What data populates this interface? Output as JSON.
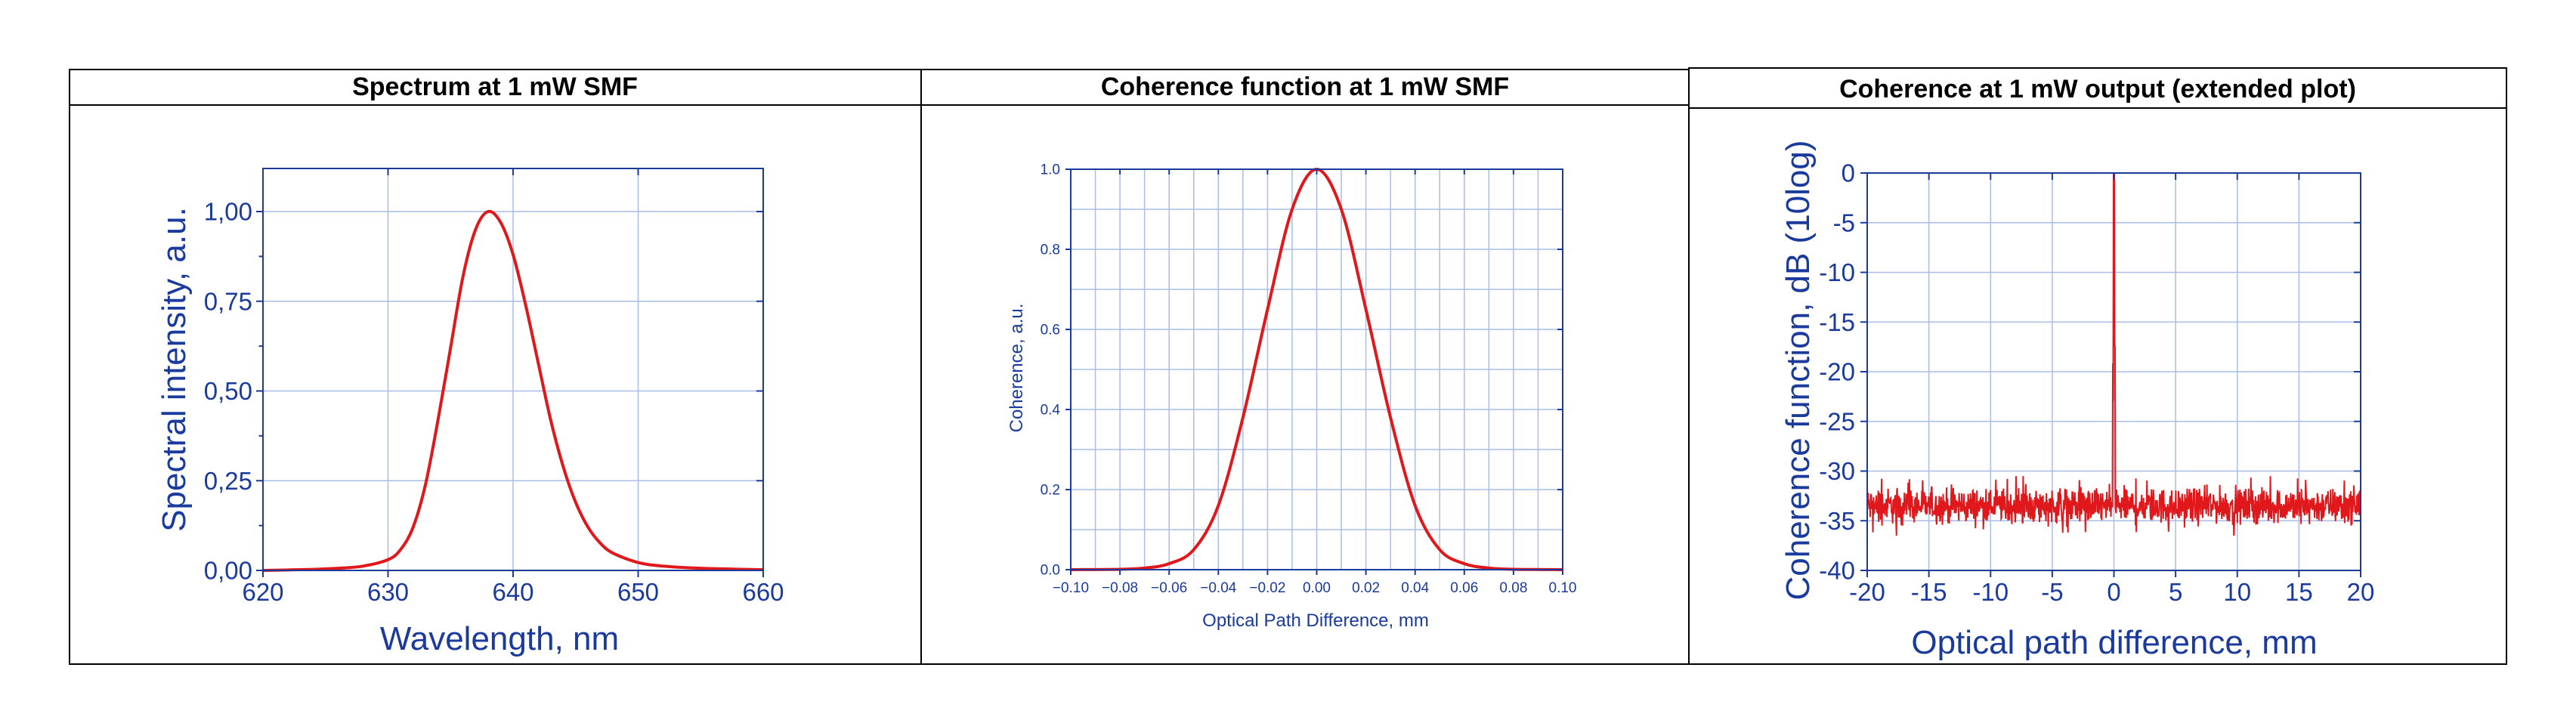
{
  "panels": [
    {
      "header": "Spectrum at 1 mW SMF"
    },
    {
      "header": "Coherence function at 1 mW SMF"
    },
    {
      "header": "Coherence at 1 mW output (extended plot)"
    }
  ],
  "colors": {
    "axis": "#1a3a9c",
    "grid": "#a9bde6",
    "curve": "#e0181b",
    "border": "#000000"
  },
  "chart_data": [
    {
      "type": "line",
      "title": "Spectrum at 1 mW SMF",
      "xlabel": "Wavelength, nm",
      "ylabel": "Spectral intensity, a.u.",
      "xlim": [
        620,
        660
      ],
      "ylim": [
        0,
        1.12
      ],
      "xticks": [
        620,
        630,
        640,
        650,
        660
      ],
      "xtick_labels": [
        "620",
        "630",
        "640",
        "650",
        "660"
      ],
      "yticks": [
        0,
        0.25,
        0.5,
        0.75,
        1.0
      ],
      "ytick_labels": [
        "0,00",
        "0,25",
        "0,50",
        "0,75",
        "1,00"
      ],
      "grid": true,
      "series": [
        {
          "x": [
            620,
            624,
            626,
            628,
            630,
            631,
            632,
            633,
            634,
            635,
            636,
            637,
            638,
            639,
            640,
            641,
            642,
            643,
            644,
            645,
            646,
            647,
            648,
            650,
            652,
            655,
            660
          ],
          "y": [
            0.0,
            0.003,
            0.006,
            0.012,
            0.03,
            0.058,
            0.12,
            0.24,
            0.42,
            0.62,
            0.82,
            0.95,
            1.0,
            0.97,
            0.88,
            0.74,
            0.58,
            0.42,
            0.29,
            0.19,
            0.12,
            0.075,
            0.048,
            0.022,
            0.012,
            0.006,
            0.002
          ]
        }
      ]
    },
    {
      "type": "line",
      "title": "Coherence function at 1 mW SMF",
      "xlabel": "Optical Path Difference, mm",
      "ylabel": "Coherence, a.u.",
      "xlim": [
        -0.1,
        0.1
      ],
      "ylim": [
        0,
        1.0
      ],
      "xticks": [
        -0.1,
        -0.08,
        -0.06,
        -0.04,
        -0.02,
        0.0,
        0.02,
        0.04,
        0.06,
        0.08,
        0.1
      ],
      "xtick_labels": [
        "−0.10",
        "−0.08",
        "−0.06",
        "−0.04",
        "−0.02",
        "0.00",
        "0.02",
        "0.04",
        "0.06",
        "0.08",
        "0.10"
      ],
      "yticks": [
        0,
        0.2,
        0.4,
        0.6,
        0.8,
        1.0
      ],
      "ytick_labels": [
        "0.0",
        "0.2",
        "0.4",
        "0.6",
        "0.8",
        "1.0"
      ],
      "grid": true,
      "series": [
        {
          "x": [
            -0.1,
            -0.08,
            -0.07,
            -0.06,
            -0.05,
            -0.04,
            -0.03,
            -0.02,
            -0.01,
            0.0,
            0.01,
            0.02,
            0.03,
            0.04,
            0.05,
            0.06,
            0.07,
            0.08,
            0.1
          ],
          "y": [
            0.0,
            0.001,
            0.004,
            0.015,
            0.05,
            0.16,
            0.38,
            0.65,
            0.9,
            1.0,
            0.9,
            0.65,
            0.38,
            0.16,
            0.05,
            0.015,
            0.004,
            0.001,
            0.0
          ]
        }
      ]
    },
    {
      "type": "line",
      "title": "Coherence at 1 mW output (extended plot)",
      "xlabel": "Optical path difference, mm",
      "ylabel": "Coherence function, dB (10log)",
      "xlim": [
        -20,
        20
      ],
      "ylim": [
        -40,
        0
      ],
      "xticks": [
        -20,
        -15,
        -10,
        -5,
        0,
        5,
        10,
        15,
        20
      ],
      "xtick_labels": [
        "-20",
        "-15",
        "-10",
        "-5",
        "0",
        "5",
        "10",
        "15",
        "20"
      ],
      "yticks": [
        -40,
        -35,
        -30,
        -25,
        -20,
        -15,
        -10,
        -5,
        0
      ],
      "ytick_labels": [
        "-40",
        "-35",
        "-30",
        "-25",
        "-20",
        "-15",
        "-10",
        "-5",
        "0"
      ],
      "grid": true,
      "noise_floor_db": -33.5,
      "noise_range_db": [
        -36.5,
        -30.5
      ],
      "peak": {
        "x": 0,
        "y": 0
      }
    }
  ]
}
